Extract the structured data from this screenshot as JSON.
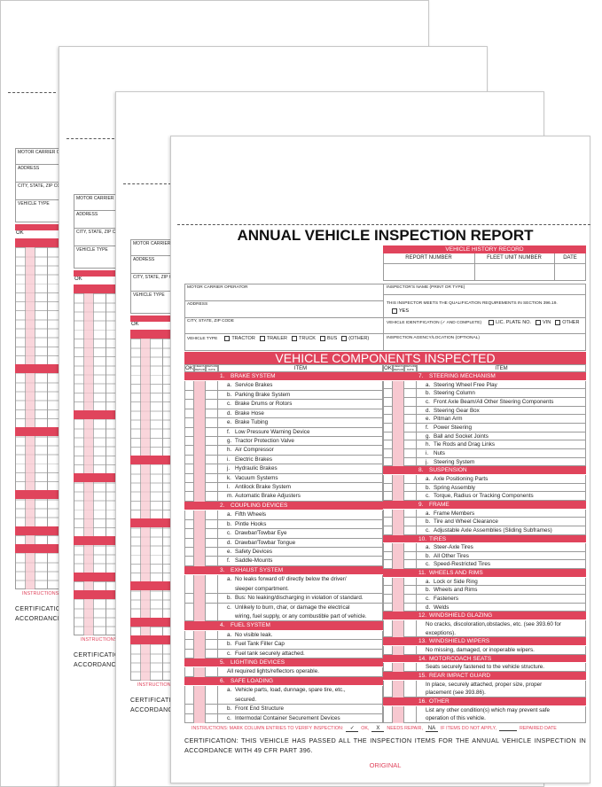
{
  "back_sheet": {
    "motor_carrier": "MOTOR CARRIER OPERATOR",
    "address": "ADDRESS",
    "city": "CITY, STATE, ZIP CODE",
    "vehicle_type": "VEHICLE TYPE",
    "ok": "OK",
    "instructions": "INSTRUCTIONS",
    "certification": "CERTIFICATION",
    "accordance": "ACCORDANCE"
  },
  "header": {
    "title": "ANNUAL VEHICLE INSPECTION REPORT"
  },
  "history": {
    "title": "VEHICLE HISTORY RECORD",
    "columns": [
      "REPORT  NUMBER",
      "FLEET UNIT NUMBER",
      "DATE"
    ]
  },
  "info": {
    "motor_carrier": "MOTOR CARRIER OPERATOR",
    "address": "ADDRESS",
    "city": "CITY, STATE, ZIP CODE",
    "vehicle_type": {
      "label": "VEHICLE TYPE",
      "options": [
        "TRACTOR",
        "TRAILER",
        "TRUCK",
        "BUS",
        "(OTHER)"
      ]
    },
    "inspector": "INSPECTOR'S NAME (PRINT OR TYPE)",
    "qualification": "THIS INSPECTOR MEETS THE QUALIFICATION REQUIREMENTS IN SECTION 396.19.",
    "yes": "YES",
    "vehicle_id": {
      "label": "VEHICLE IDENTIFICATION (✓ AND COMPLETE)",
      "options": [
        "LIC. PLATE NO.",
        "VIN",
        "OTHER"
      ]
    },
    "agency": "INSPECTION AGENCY/LOCATION (OPTIONAL)"
  },
  "components": {
    "title": "VEHICLE COMPONENTS INSPECTED",
    "columns": {
      "ok": "OK",
      "needs_repair": "NEEDS REPAIR",
      "repaired_date": "REPAIRED DATE",
      "item": "ITEM"
    },
    "left": [
      {
        "number": "1.",
        "title": "BRAKE SYSTEM",
        "items": [
          {
            "letter": "a.",
            "lines": [
              "Service Brakes"
            ]
          },
          {
            "letter": "b.",
            "lines": [
              "Parking Brake System"
            ]
          },
          {
            "letter": "c.",
            "lines": [
              "Brake Drums or Rotors"
            ]
          },
          {
            "letter": "d.",
            "lines": [
              "Brake Hose"
            ]
          },
          {
            "letter": "e.",
            "lines": [
              "Brake Tubing"
            ]
          },
          {
            "letter": "f.",
            "lines": [
              "Low Pressure Warning Device"
            ]
          },
          {
            "letter": "g.",
            "lines": [
              "Tractor Protection Valve"
            ]
          },
          {
            "letter": "h.",
            "lines": [
              "Air Compressor"
            ]
          },
          {
            "letter": "i.",
            "lines": [
              "Electric Brakes"
            ]
          },
          {
            "letter": "j.",
            "lines": [
              "Hydraulic Brakes"
            ]
          },
          {
            "letter": "k.",
            "lines": [
              "Vacuum Systems"
            ]
          },
          {
            "letter": "l.",
            "lines": [
              "Antilock Brake System"
            ]
          },
          {
            "letter": "m.",
            "lines": [
              "Automatic Brake Adjusters"
            ]
          }
        ]
      },
      {
        "number": "2.",
        "title": "COUPLING DEVICES",
        "items": [
          {
            "letter": "a.",
            "lines": [
              "Fifth Wheels"
            ]
          },
          {
            "letter": "b.",
            "lines": [
              "Pintle Hooks"
            ]
          },
          {
            "letter": "c.",
            "lines": [
              "Drawbar/Towbar Eye"
            ]
          },
          {
            "letter": "d.",
            "lines": [
              "Drawbar/Towbar Tongue"
            ]
          },
          {
            "letter": "e.",
            "lines": [
              "Safety Devices"
            ]
          },
          {
            "letter": "f.",
            "lines": [
              "Saddle-Mounts"
            ]
          }
        ]
      },
      {
        "number": "3.",
        "title": "EXHAUST SYSTEM",
        "items": [
          {
            "letter": "a.",
            "lines": [
              "No leaks forward of/ directly below the driver/",
              "sleeper compartment."
            ]
          },
          {
            "letter": "b.",
            "lines": [
              "Bus: No leaking/discharging in violation of standard."
            ]
          },
          {
            "letter": "c.",
            "lines": [
              "Unlikely to burn, char, or damage the electrical",
              "wiring, fuel supply, or any combustible part of vehicle."
            ]
          }
        ]
      },
      {
        "number": "4.",
        "title": "FUEL SYSTEM",
        "items": [
          {
            "letter": "a.",
            "lines": [
              "No visible leak."
            ]
          },
          {
            "letter": "b.",
            "lines": [
              "Fuel Tank Filler Cap"
            ]
          },
          {
            "letter": "c.",
            "lines": [
              "Fuel tank securely attached."
            ]
          }
        ]
      },
      {
        "number": "5.",
        "title": "LIGHTING DEVICES",
        "items": [
          {
            "lines": [
              "All required lights/reflectors operable."
            ]
          }
        ]
      },
      {
        "number": "6.",
        "title": "SAFE LOADING",
        "items": [
          {
            "letter": "a.",
            "lines": [
              "Vehicle parts, load, dunnage, spare tire, etc.,",
              "secured."
            ]
          },
          {
            "letter": "b.",
            "lines": [
              "Front End Structure"
            ]
          },
          {
            "letter": "c.",
            "lines": [
              "Intermodal Container Securement Devices"
            ]
          }
        ]
      }
    ],
    "right": [
      {
        "number": "7.",
        "title": "STEERING MECHANISM",
        "items": [
          {
            "letter": "a.",
            "lines": [
              "Steering Wheel Free Play"
            ]
          },
          {
            "letter": "b.",
            "lines": [
              "Steering Column"
            ]
          },
          {
            "letter": "c.",
            "lines": [
              "Front Axle Beam/All Other Steering Components"
            ]
          },
          {
            "letter": "d.",
            "lines": [
              "Steering Gear Box"
            ]
          },
          {
            "letter": "e.",
            "lines": [
              "Pitman Arm"
            ]
          },
          {
            "letter": "f.",
            "lines": [
              "Power Steering"
            ]
          },
          {
            "letter": "g.",
            "lines": [
              "Ball and Socket Joints"
            ]
          },
          {
            "letter": "h.",
            "lines": [
              "Tie Rods and Drag Links"
            ]
          },
          {
            "letter": "i.",
            "lines": [
              "Nuts"
            ]
          },
          {
            "letter": "j.",
            "lines": [
              "Steering System"
            ]
          }
        ]
      },
      {
        "number": "8.",
        "title": "SUSPENSION",
        "items": [
          {
            "letter": "a.",
            "lines": [
              "Axle Positioning Parts"
            ]
          },
          {
            "letter": "b.",
            "lines": [
              "Spring Assembly"
            ]
          },
          {
            "letter": "c.",
            "lines": [
              "Torque, Radius or Tracking Components"
            ]
          }
        ]
      },
      {
        "number": "9.",
        "title": "FRAME",
        "items": [
          {
            "letter": "a.",
            "lines": [
              "Frame Members"
            ]
          },
          {
            "letter": "b.",
            "lines": [
              "Tire and Wheel Clearance"
            ]
          },
          {
            "letter": "c.",
            "lines": [
              "Adjustable Axle Assemblies (Sliding Subframes)"
            ]
          }
        ]
      },
      {
        "number": "10.",
        "title": "TIRES",
        "items": [
          {
            "letter": "a.",
            "lines": [
              "Steer-Axle Tires"
            ]
          },
          {
            "letter": "b.",
            "lines": [
              "All Other Tires"
            ]
          },
          {
            "letter": "c.",
            "lines": [
              "Speed-Restricted Tires"
            ]
          }
        ]
      },
      {
        "number": "11.",
        "title": "WHEELS AND RIMS",
        "items": [
          {
            "letter": "a.",
            "lines": [
              "Lock or Side Ring"
            ]
          },
          {
            "letter": "b.",
            "lines": [
              "Wheels and Rims"
            ]
          },
          {
            "letter": "c.",
            "lines": [
              "Fasteners"
            ]
          },
          {
            "letter": "d.",
            "lines": [
              "Welds"
            ]
          }
        ]
      },
      {
        "number": "12.",
        "title": "WINDSHIELD GLAZING",
        "items": [
          {
            "lines": [
              "No cracks, discoloration,obstacles, etc. (see 393.60 for",
              "exceptions)."
            ]
          }
        ]
      },
      {
        "number": "13.",
        "title": "WINDSHIELD WIPERS",
        "items": [
          {
            "lines": [
              "No missing, damaged, or inoperable wipers."
            ]
          }
        ]
      },
      {
        "number": "14.",
        "title": "MOTORCOACH SEATS",
        "items": [
          {
            "lines": [
              "Seats securely fastened to the vehicle structure."
            ]
          }
        ]
      },
      {
        "number": "15.",
        "title": "REAR IMPACT GUARD",
        "items": [
          {
            "lines": [
              "In place, securely attached, proper size, proper",
              "placement (see 393.86)."
            ]
          }
        ]
      },
      {
        "number": "16.",
        "title": "OTHER",
        "items": [
          {
            "lines": [
              "List any other condition(s) which may prevent safe",
              "operation of this vehicle."
            ]
          }
        ]
      }
    ]
  },
  "instructions": [
    "INSTRUCTIONS: MARK COLUMN ENTRIES TO VERIFY INSPECTION:",
    "✓",
    "OK,",
    "X",
    "NEEDS REPAIR,",
    "NA",
    "IF ITEMS DO NOT APPLY,",
    "REPAIRED DATE"
  ],
  "certification": "CERTIFICATION: THIS VEHICLE HAS PASSED ALL THE INSPECTION ITEMS FOR THE ANNUAL VEHICLE INSPECTION IN ACCORDANCE WITH 49 CFR PART 396.",
  "copy": "ORIGINAL"
}
